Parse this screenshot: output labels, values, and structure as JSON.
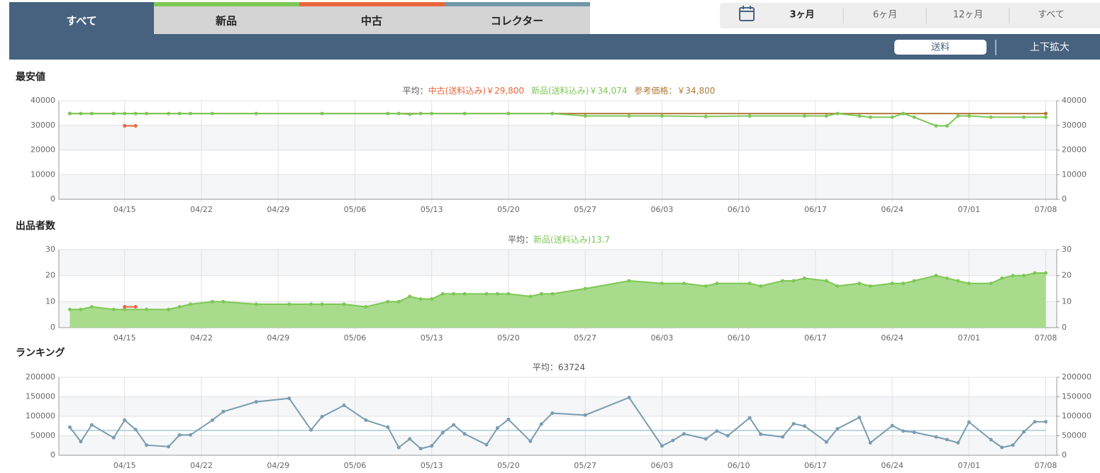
{
  "tabs": [
    "すべて",
    "新品",
    "中古",
    "コレクター"
  ],
  "periods": [
    "3ヶ月",
    "6ヶ月",
    "12ヶ月",
    "すべて"
  ],
  "toolbar": {
    "shipping": "送料",
    "zoom": "上下拡大"
  },
  "chart_data": [
    {
      "type": "line",
      "title": "最安値",
      "subtitle": [
        {
          "text": "平均：",
          "color": "#555555"
        },
        {
          "text": "中古(送料込み)￥29,800",
          "color": "#e8663c"
        },
        {
          "text": "新品(送料込み)￥34,074",
          "color": "#7dc855"
        },
        {
          "text": "参考価格：￥34,800",
          "color": "#b07a3c"
        }
      ],
      "xlim": [
        "04/09",
        "07/09"
      ],
      "xticks": [
        "04/15",
        "04/22",
        "04/29",
        "05/06",
        "05/13",
        "05/20",
        "05/27",
        "06/03",
        "06/10",
        "06/17",
        "06/24",
        "07/01",
        "07/08"
      ],
      "ylim": [
        0,
        40000
      ],
      "yticks": [
        0,
        10000,
        20000,
        30000,
        40000
      ],
      "y2lim": [
        0,
        40000
      ],
      "y2ticks": [
        0,
        10000,
        20000,
        30000,
        40000
      ],
      "series": [
        {
          "color": "#b07a3c",
          "x": [
            "04/10",
            "07/08"
          ],
          "values": [
            34800,
            34800
          ]
        },
        {
          "color": "#7dc855",
          "x": [
            "04/10",
            "04/11",
            "04/12",
            "04/14",
            "04/15",
            "04/16",
            "04/17",
            "04/19",
            "04/20",
            "04/21",
            "04/23",
            "04/27",
            "05/03",
            "05/09",
            "05/10",
            "05/11",
            "05/12",
            "05/13",
            "05/16",
            "05/20",
            "05/24",
            "05/27",
            "05/31",
            "06/03",
            "06/07",
            "06/11",
            "06/16",
            "06/18",
            "06/19",
            "06/21",
            "06/22",
            "06/24",
            "06/25",
            "06/26",
            "06/28",
            "06/29",
            "06/30",
            "07/01",
            "07/03",
            "07/06",
            "07/08"
          ],
          "values": [
            34800,
            34800,
            34800,
            34800,
            34800,
            34800,
            34800,
            34800,
            34800,
            34800,
            34800,
            34800,
            34800,
            34800,
            34800,
            34500,
            34800,
            34800,
            34800,
            34800,
            34800,
            33800,
            33800,
            33800,
            33600,
            33800,
            33800,
            33800,
            34800,
            33800,
            33300,
            33300,
            34800,
            33300,
            29800,
            29800,
            33800,
            33800,
            33300,
            33300,
            33300
          ]
        },
        {
          "color": "#e8663c",
          "x": [
            "04/15",
            "04/16"
          ],
          "values": [
            29800,
            29800
          ]
        }
      ]
    },
    {
      "type": "area",
      "title": "出品者数",
      "subtitle": [
        {
          "text": "平均：",
          "color": "#555555"
        },
        {
          "text": "新品(送料込み)13.7",
          "color": "#7dc855"
        }
      ],
      "xlim": [
        "04/09",
        "07/09"
      ],
      "xticks": [
        "04/15",
        "04/22",
        "04/29",
        "05/06",
        "05/13",
        "05/20",
        "05/27",
        "06/03",
        "06/10",
        "06/17",
        "06/24",
        "07/01",
        "07/08"
      ],
      "ylim": [
        0,
        30
      ],
      "yticks": [
        0,
        10,
        20,
        30
      ],
      "y2lim": [
        0,
        30
      ],
      "y2ticks": [
        0,
        10,
        20,
        30
      ],
      "series": [
        {
          "color": "#7dc855",
          "fill": "#a8dc8c",
          "x": [
            "04/10",
            "04/11",
            "04/12",
            "04/14",
            "04/15",
            "04/17",
            "04/19",
            "04/20",
            "04/21",
            "04/23",
            "04/24",
            "04/27",
            "04/30",
            "05/02",
            "05/03",
            "05/05",
            "05/07",
            "05/09",
            "05/10",
            "05/11",
            "05/12",
            "05/13",
            "05/14",
            "05/15",
            "05/16",
            "05/18",
            "05/19",
            "05/20",
            "05/22",
            "05/23",
            "05/24",
            "05/27",
            "05/31",
            "06/03",
            "06/05",
            "06/07",
            "06/08",
            "06/11",
            "06/12",
            "06/14",
            "06/15",
            "06/16",
            "06/18",
            "06/19",
            "06/21",
            "06/22",
            "06/24",
            "06/25",
            "06/26",
            "06/28",
            "06/29",
            "06/30",
            "07/01",
            "07/03",
            "07/04",
            "07/05",
            "07/06",
            "07/07",
            "07/08"
          ],
          "values": [
            7,
            7,
            8,
            7,
            7,
            7,
            7,
            8,
            9,
            10,
            10,
            9,
            9,
            9,
            9,
            9,
            8,
            10,
            10,
            12,
            11,
            11,
            13,
            13,
            13,
            13,
            13,
            13,
            12,
            13,
            13,
            15,
            18,
            17,
            17,
            16,
            17,
            17,
            16,
            18,
            18,
            19,
            18,
            16,
            17,
            16,
            17,
            17,
            18,
            20,
            19,
            18,
            17,
            17,
            19,
            20,
            20,
            21,
            21
          ]
        },
        {
          "color": "#e8663c",
          "x": [
            "04/15",
            "04/16"
          ],
          "values": [
            8,
            8
          ]
        }
      ]
    },
    {
      "type": "line",
      "title": "ランキング",
      "subtitle": [
        {
          "text": "平均：63724",
          "color": "#555555"
        }
      ],
      "average": 63724,
      "average_color": "#a8c8dc",
      "xlim": [
        "04/09",
        "07/09"
      ],
      "xticks": [
        "04/15",
        "04/22",
        "04/29",
        "05/06",
        "05/13",
        "05/20",
        "05/27",
        "06/03",
        "06/10",
        "06/17",
        "06/24",
        "07/01",
        "07/08"
      ],
      "ylim": [
        0,
        200000
      ],
      "yticks": [
        0,
        50000,
        100000,
        150000,
        200000
      ],
      "y2lim": [
        0,
        200000
      ],
      "y2ticks": [
        0,
        50000,
        100000,
        150000,
        200000
      ],
      "series": [
        {
          "color": "#7a9cb0",
          "x": [
            "04/10",
            "04/11",
            "04/12",
            "04/14",
            "04/15",
            "04/16",
            "04/17",
            "04/19",
            "04/20",
            "04/21",
            "04/23",
            "04/24",
            "04/27",
            "04/30",
            "05/02",
            "05/03",
            "05/05",
            "05/07",
            "05/09",
            "05/10",
            "05/11",
            "05/12",
            "05/13",
            "05/14",
            "05/15",
            "05/16",
            "05/18",
            "05/19",
            "05/20",
            "05/22",
            "05/23",
            "05/24",
            "05/27",
            "05/31",
            "06/03",
            "06/04",
            "06/05",
            "06/07",
            "06/08",
            "06/09",
            "06/11",
            "06/12",
            "06/14",
            "06/15",
            "06/16",
            "06/18",
            "06/19",
            "06/21",
            "06/22",
            "06/24",
            "06/25",
            "06/26",
            "06/28",
            "06/29",
            "06/30",
            "07/01",
            "07/03",
            "07/04",
            "07/05",
            "07/06",
            "07/07",
            "07/08"
          ],
          "values": [
            72000,
            35000,
            78000,
            45000,
            90000,
            66000,
            26000,
            22000,
            52000,
            52000,
            90000,
            112000,
            137000,
            146000,
            65000,
            99000,
            128000,
            90000,
            72000,
            20000,
            42000,
            17000,
            24000,
            58000,
            78000,
            55000,
            27000,
            70000,
            92000,
            36000,
            80000,
            108000,
            103000,
            148000,
            24000,
            38000,
            55000,
            42000,
            62000,
            50000,
            96000,
            54000,
            47000,
            81000,
            75000,
            34000,
            68000,
            97000,
            32000,
            76000,
            62000,
            59000,
            47000,
            40000,
            32000,
            85000,
            40000,
            20000,
            26000,
            60000,
            86000,
            86000
          ]
        }
      ]
    }
  ]
}
